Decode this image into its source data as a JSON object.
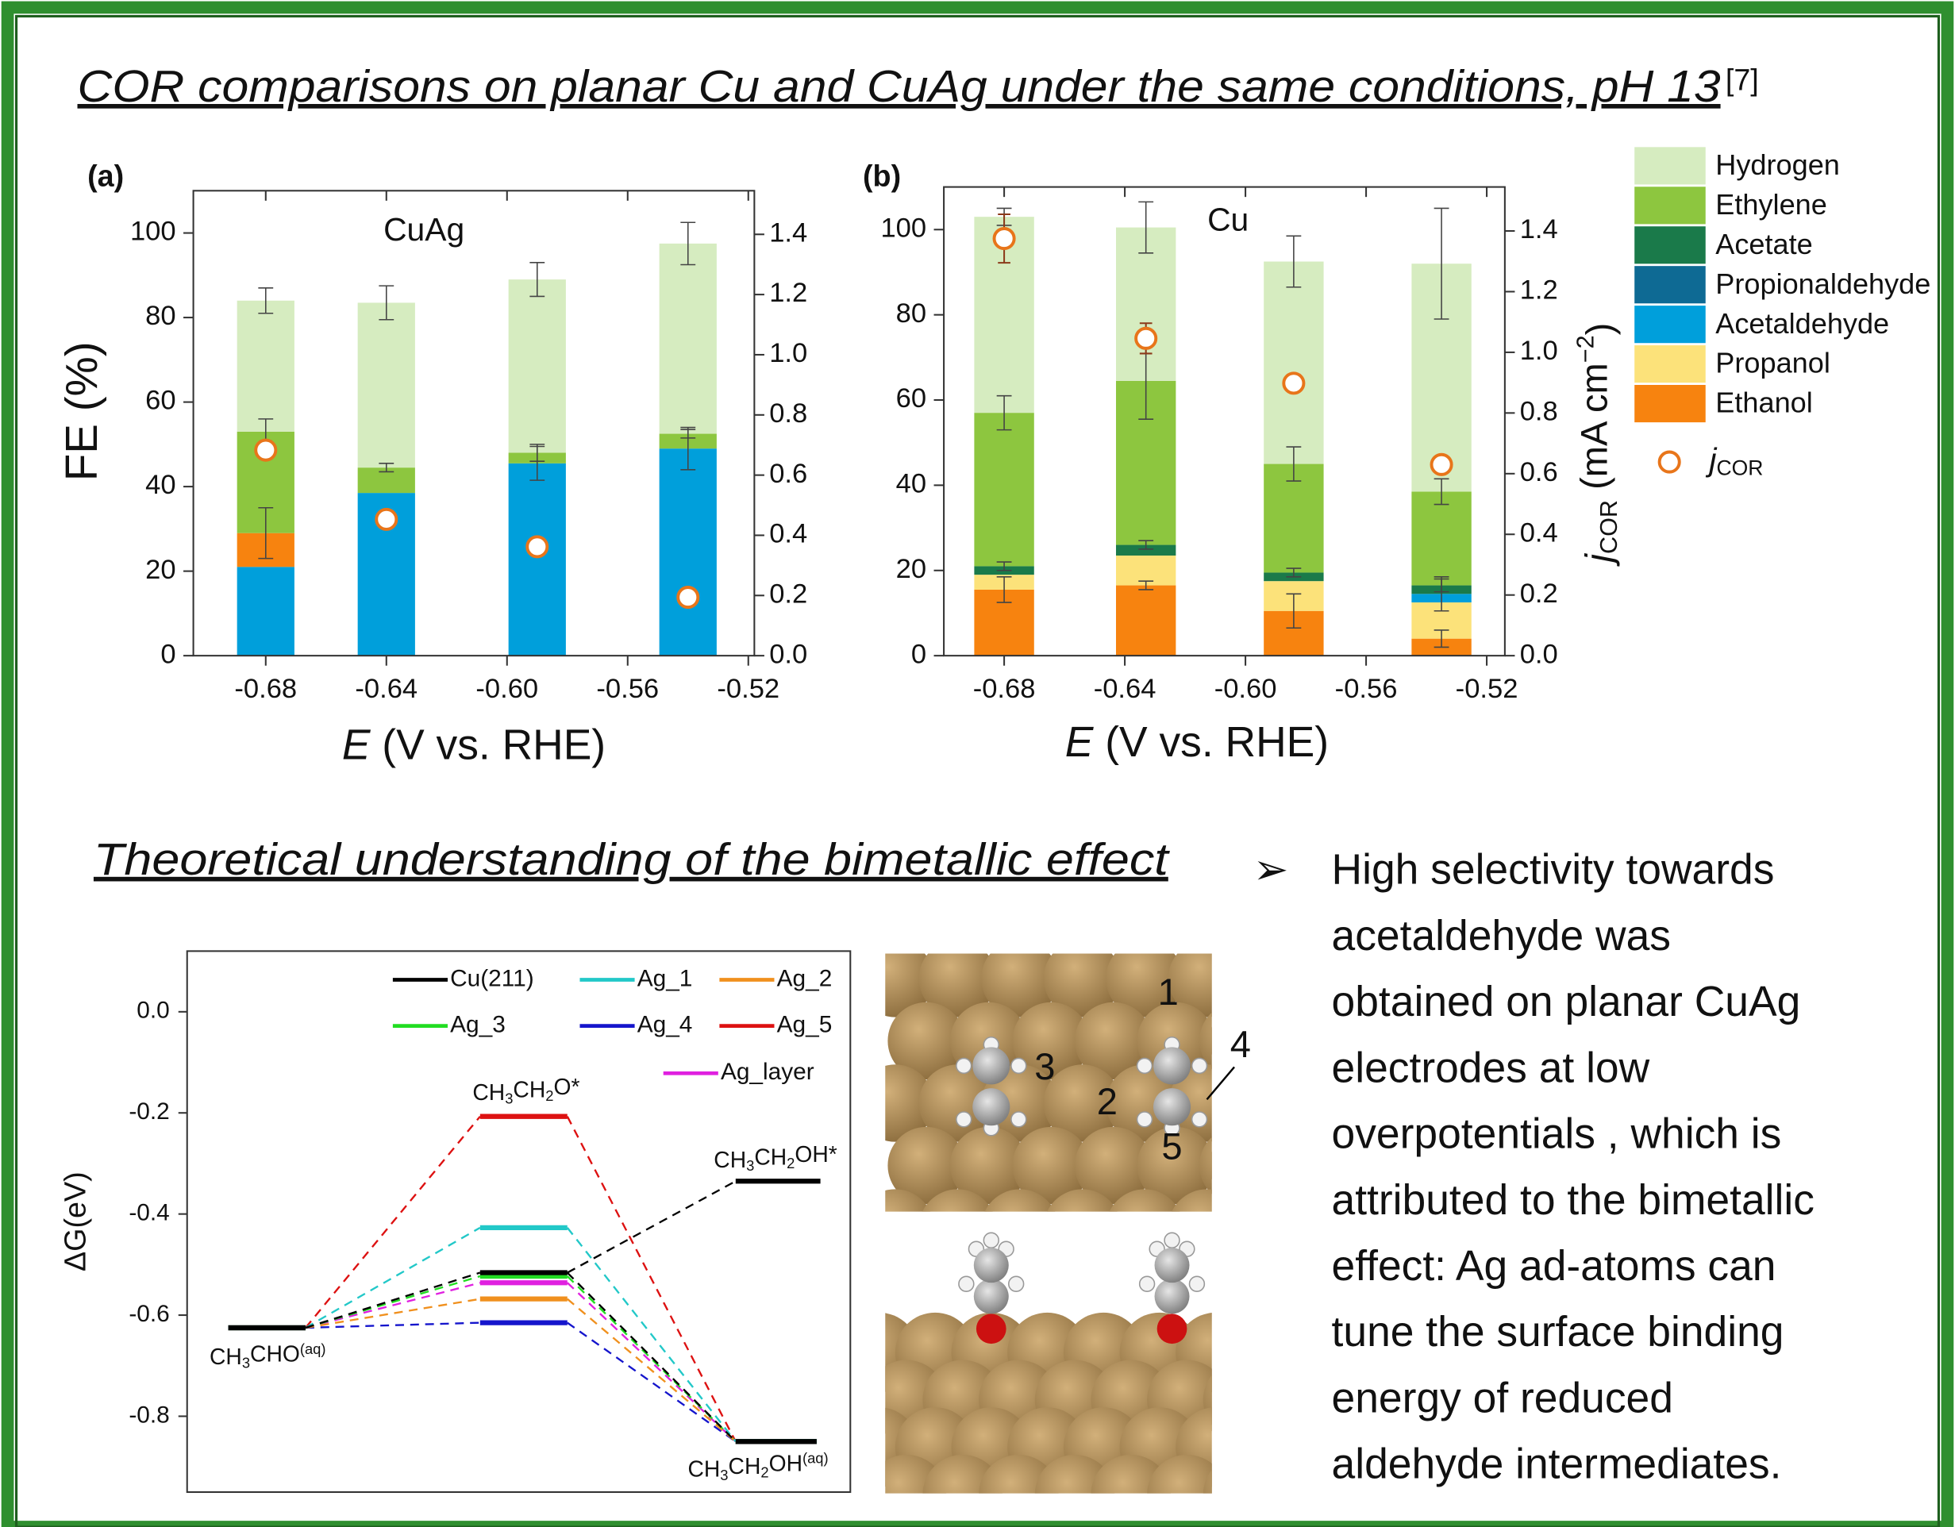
{
  "title": "COR comparisons on planar Cu and CuAg under the same conditions, pH 13",
  "reference": "[7]",
  "section_heading": "Theoretical understanding of the bimetallic effect",
  "bullet": [
    "High selectivity towards",
    "acetaldehyde was",
    "obtained on planar CuAg",
    "electrodes at low",
    "overpotentials , which is",
    "attributed to the bimetallic",
    "effect: Ag ad-atoms can",
    "tune the surface binding",
    "energy of reduced",
    "aldehyde intermediates."
  ],
  "structure_labels": [
    "1",
    "2",
    "3",
    "4",
    "5"
  ],
  "chart_data": [
    {
      "type": "bar",
      "panel": "(a)",
      "label": "CuAg",
      "xlabel": [
        {
          "text": "E",
          "style": "italic"
        },
        {
          "text": " (V vs. RHE)"
        }
      ],
      "ylabel": [
        {
          "text": "FE (%)"
        }
      ],
      "x": [
        -0.68,
        -0.64,
        -0.59,
        -0.54
      ],
      "xlim": [
        -0.704,
        -0.518
      ],
      "xticks": [
        -0.68,
        -0.64,
        {
          "value": -0.6,
          "label": "-0.60"
        },
        -0.56,
        -0.52
      ],
      "ylim": [
        0,
        110
      ],
      "yticks": [
        0,
        20,
        40,
        60,
        80,
        100
      ],
      "y2lim": [
        0,
        1.545
      ],
      "y2ticks": [
        {
          "value": 0,
          "label": "0.0"
        },
        0.2,
        0.4,
        0.6,
        0.8,
        {
          "value": 1,
          "label": "1.0"
        },
        1.2,
        1.4
      ],
      "series": [
        {
          "color": "#009fdb",
          "values": [
            21,
            38.5,
            45.5,
            49
          ],
          "errors": [
            null,
            null,
            4,
            5
          ]
        },
        {
          "color": "#f7830f",
          "values": [
            8,
            0,
            0,
            0
          ],
          "errors": [
            6,
            null,
            null,
            null
          ]
        },
        {
          "color": "#8dc63f",
          "values": [
            24,
            6,
            2.5,
            3.5
          ],
          "errors": [
            3,
            1,
            2,
            1
          ]
        },
        {
          "color": "#d6ecc0",
          "values": [
            31,
            39,
            41,
            45
          ],
          "errors": [
            3,
            4,
            4,
            5
          ]
        },
        {
          "type": "scatter",
          "axis": "y2",
          "color": "#e8751a",
          "values": [
            0.683,
            0.453,
            0.362,
            0.194
          ],
          "errors": [
            0.03,
            0.02,
            0.02,
            0.02
          ]
        }
      ]
    },
    {
      "type": "bar",
      "panel": "(b)",
      "label": "Cu",
      "xlabel": [
        {
          "text": "E",
          "style": "italic"
        },
        {
          "text": " (V vs. RHE)"
        }
      ],
      "y2label": [
        {
          "text": "j",
          "style": "italic"
        },
        {
          "text": "COR",
          "style": "sub"
        },
        {
          "text": " (mA cm"
        },
        {
          "text": "−2",
          "style": "sup"
        },
        {
          "text": ")"
        }
      ],
      "x": [
        -0.68,
        -0.633,
        -0.584,
        -0.535
      ],
      "xlim": [
        -0.7,
        -0.514
      ],
      "xticks": [
        -0.68,
        -0.64,
        {
          "value": -0.6,
          "label": "-0.60"
        },
        -0.56,
        -0.52
      ],
      "ylim": [
        0,
        110
      ],
      "yticks": [
        0,
        20,
        40,
        60,
        80,
        100
      ],
      "y2lim": [
        0,
        1.545
      ],
      "y2ticks": [
        {
          "value": 0,
          "label": "0.0"
        },
        0.2,
        0.4,
        0.6,
        0.8,
        {
          "value": 1,
          "label": "1.0"
        },
        1.2,
        1.4
      ],
      "legend": true,
      "series": [
        {
          "name": "Ethanol",
          "color": "#f7830f",
          "values": [
            15.5,
            16.5,
            10.5,
            4
          ],
          "errors": [
            3,
            1,
            4,
            2
          ]
        },
        {
          "name": "Propanol",
          "color": "#fce27a",
          "values": [
            3.5,
            7,
            7,
            8.5
          ]
        },
        {
          "name": "Acetaldehyde",
          "color": "#009fdb",
          "values": [
            0,
            0,
            0,
            2
          ],
          "errors": [
            null,
            null,
            null,
            4
          ]
        },
        {
          "name": "Propionaldehyde",
          "color": "#0e6a94",
          "values": [
            0,
            0,
            0,
            0
          ]
        },
        {
          "name": "Acetate",
          "color": "#1a7a4a",
          "values": [
            2,
            2.5,
            2,
            2
          ],
          "errors": [
            1,
            1,
            1,
            1.5
          ]
        },
        {
          "name": "Ethylene",
          "color": "#8dc63f",
          "values": [
            36,
            38.5,
            25.5,
            22
          ],
          "errors": [
            4,
            9,
            4,
            3
          ]
        },
        {
          "name": "Hydrogen",
          "color": "#d6ecc0",
          "values": [
            46,
            36,
            47.5,
            53.5
          ],
          "errors": [
            2,
            6,
            6,
            13
          ]
        },
        {
          "name": [
            {
              "text": "j",
              "style": "italic"
            },
            {
              "text": "COR",
              "style": "sub"
            }
          ],
          "type": "scatter",
          "axis": "y2",
          "color": "#e8751a",
          "values": [
            1.375,
            1.046,
            0.898,
            0.63
          ],
          "errors": [
            0.08,
            0.05,
            0.02,
            0.02
          ]
        }
      ]
    },
    {
      "type": "levels",
      "ylabel": [
        {
          "text": "ΔG(eV)"
        }
      ],
      "ylim": [
        -0.95,
        0.12
      ],
      "yticks": [
        {
          "value": 0,
          "label": "0.0"
        },
        -0.2,
        -0.4,
        -0.6,
        -0.8
      ],
      "states": [
        [
          {
            "text": "CH"
          },
          {
            "text": "3",
            "style": "sub"
          },
          {
            "text": "CHO"
          },
          {
            "text": "(aq)",
            "style": "sup"
          }
        ],
        [
          {
            "text": "CH"
          },
          {
            "text": "3",
            "style": "sub"
          },
          {
            "text": "CH"
          },
          {
            "text": "2",
            "style": "sub"
          },
          {
            "text": "O*"
          }
        ],
        [
          {
            "text": "CH"
          },
          {
            "text": "3",
            "style": "sub"
          },
          {
            "text": "CH"
          },
          {
            "text": "2",
            "style": "sub"
          },
          {
            "text": "OH"
          },
          {
            "text": "(aq)",
            "style": "sup"
          }
        ]
      ],
      "adsorbed_level": {
        "label": [
          {
            "text": "CH"
          },
          {
            "text": "3",
            "style": "sub"
          },
          {
            "text": "CH"
          },
          {
            "text": "2",
            "style": "sub"
          },
          {
            "text": "OH*"
          }
        ],
        "value": -0.335
      },
      "series": [
        {
          "name": "Cu(211)",
          "color": "#000000",
          "values": [
            -0.625,
            -0.516,
            -0.85
          ]
        },
        {
          "name": "Ag_1",
          "color": "#22c8c8",
          "values": [
            -0.625,
            -0.427,
            -0.85
          ]
        },
        {
          "name": "Ag_2",
          "color": "#f0901e",
          "values": [
            -0.625,
            -0.568,
            -0.85
          ]
        },
        {
          "name": "Ag_3",
          "color": "#22dd22",
          "values": [
            -0.625,
            -0.523,
            -0.85
          ]
        },
        {
          "name": "Ag_4",
          "color": "#1515cc",
          "values": [
            -0.625,
            -0.615,
            -0.85
          ]
        },
        {
          "name": "Ag_5",
          "color": "#dd1111",
          "values": [
            -0.625,
            -0.207,
            -0.85
          ]
        },
        {
          "name": "Ag_layer",
          "color": "#e020e0",
          "values": [
            -0.625,
            -0.536,
            -0.85
          ]
        }
      ]
    }
  ]
}
